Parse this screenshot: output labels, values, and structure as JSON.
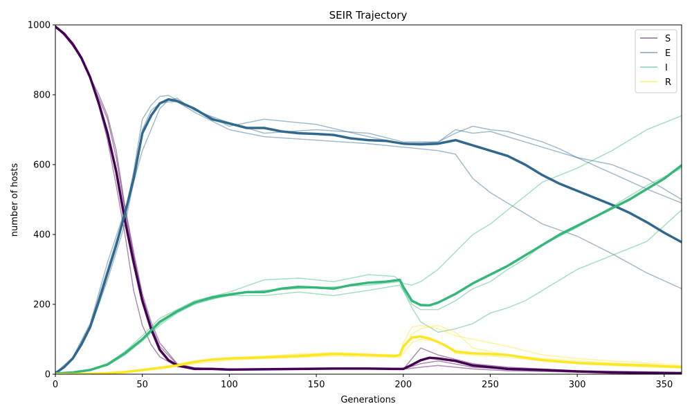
{
  "chart_data": {
    "type": "line",
    "title": "SEIR Trajectory",
    "xlabel": "Generations",
    "ylabel": "number of hosts",
    "xlim": [
      0,
      360
    ],
    "ylim": [
      0,
      1000
    ],
    "xticks": [
      0,
      50,
      100,
      150,
      200,
      250,
      300,
      350
    ],
    "yticks": [
      0,
      200,
      400,
      600,
      800,
      1000
    ],
    "grid": false,
    "legend_position": "top-right",
    "colors": {
      "S": "#440154",
      "E": "#31688e",
      "I": "#35b779",
      "R": "#fde725"
    },
    "series": [
      {
        "name": "S",
        "kind": "mean",
        "x": [
          0,
          5,
          10,
          15,
          20,
          25,
          30,
          35,
          40,
          45,
          50,
          55,
          60,
          65,
          70,
          80,
          90,
          100,
          120,
          140,
          160,
          180,
          195,
          200,
          205,
          210,
          215,
          220,
          230,
          240,
          250,
          260,
          280,
          300,
          320,
          340,
          360
        ],
        "y": [
          995,
          975,
          945,
          905,
          850,
          775,
          690,
          580,
          440,
          320,
          210,
          130,
          70,
          40,
          25,
          15,
          15,
          13,
          14,
          15,
          16,
          16,
          15,
          15,
          27,
          40,
          47,
          45,
          38,
          25,
          20,
          15,
          12,
          8,
          5,
          4,
          3
        ]
      },
      {
        "name": "S",
        "kind": "run",
        "x": [
          0,
          5,
          10,
          15,
          20,
          25,
          30,
          35,
          40,
          45,
          50,
          55,
          60,
          70,
          80,
          100,
          150,
          195,
          200,
          210,
          220,
          240,
          260,
          300,
          360
        ],
        "y": [
          995,
          975,
          945,
          905,
          850,
          800,
          740,
          640,
          480,
          350,
          230,
          150,
          90,
          30,
          18,
          15,
          15,
          15,
          14,
          75,
          55,
          30,
          20,
          10,
          5
        ]
      },
      {
        "name": "S",
        "kind": "run",
        "x": [
          0,
          5,
          10,
          15,
          20,
          25,
          30,
          35,
          40,
          45,
          50,
          55,
          60,
          70,
          80,
          100,
          150,
          200,
          210,
          220,
          240,
          260,
          300,
          360
        ],
        "y": [
          995,
          970,
          940,
          905,
          845,
          790,
          730,
          620,
          470,
          340,
          220,
          140,
          80,
          28,
          18,
          15,
          16,
          15,
          30,
          38,
          20,
          15,
          8,
          3
        ]
      },
      {
        "name": "S",
        "kind": "run",
        "x": [
          0,
          5,
          10,
          15,
          20,
          25,
          30,
          35,
          40,
          45,
          50,
          55,
          60,
          70,
          80,
          100,
          150,
          200,
          210,
          220,
          240,
          260,
          300,
          360
        ],
        "y": [
          995,
          975,
          950,
          910,
          855,
          770,
          670,
          540,
          400,
          240,
          140,
          85,
          50,
          22,
          14,
          14,
          15,
          14,
          20,
          25,
          15,
          10,
          6,
          2
        ]
      },
      {
        "name": "E",
        "kind": "mean",
        "x": [
          0,
          5,
          10,
          15,
          20,
          25,
          30,
          35,
          40,
          45,
          50,
          55,
          60,
          65,
          70,
          80,
          90,
          100,
          110,
          120,
          130,
          140,
          150,
          160,
          170,
          180,
          190,
          200,
          210,
          220,
          230,
          240,
          250,
          260,
          270,
          280,
          290,
          300,
          310,
          320,
          330,
          340,
          350,
          360
        ],
        "y": [
          3,
          20,
          45,
          85,
          135,
          210,
          290,
          370,
          460,
          560,
          690,
          740,
          775,
          787,
          782,
          760,
          730,
          718,
          705,
          705,
          695,
          690,
          688,
          685,
          675,
          670,
          668,
          660,
          658,
          660,
          670,
          655,
          640,
          625,
          600,
          570,
          545,
          525,
          505,
          485,
          462,
          435,
          405,
          378
        ]
      },
      {
        "name": "E",
        "kind": "run",
        "x": [
          0,
          10,
          20,
          30,
          40,
          45,
          50,
          55,
          60,
          65,
          70,
          80,
          100,
          120,
          150,
          180,
          200,
          220,
          230,
          240,
          250,
          260,
          270,
          280,
          290,
          300,
          320,
          340,
          360
        ],
        "y": [
          3,
          45,
          140,
          300,
          460,
          580,
          730,
          770,
          795,
          798,
          785,
          760,
          710,
          730,
          715,
          680,
          660,
          665,
          690,
          710,
          700,
          695,
          680,
          665,
          645,
          620,
          600,
          560,
          500
        ]
      },
      {
        "name": "E",
        "kind": "run",
        "x": [
          0,
          10,
          20,
          30,
          40,
          45,
          50,
          55,
          60,
          65,
          70,
          80,
          100,
          120,
          150,
          180,
          200,
          220,
          230,
          240,
          250,
          260,
          270,
          280,
          300,
          320,
          340,
          360
        ],
        "y": [
          3,
          42,
          130,
          270,
          430,
          550,
          700,
          755,
          775,
          780,
          780,
          750,
          700,
          680,
          670,
          660,
          650,
          640,
          630,
          560,
          520,
          490,
          460,
          430,
          395,
          345,
          290,
          245
        ]
      },
      {
        "name": "E",
        "kind": "run",
        "x": [
          0,
          10,
          20,
          30,
          40,
          45,
          50,
          55,
          60,
          65,
          70,
          80,
          100,
          120,
          150,
          180,
          200,
          220,
          230,
          240,
          250,
          260,
          280,
          300,
          320,
          340,
          360
        ],
        "y": [
          3,
          48,
          145,
          320,
          470,
          550,
          640,
          700,
          760,
          785,
          790,
          755,
          720,
          690,
          700,
          690,
          665,
          665,
          700,
          690,
          695,
          680,
          650,
          620,
          575,
          530,
          490
        ]
      },
      {
        "name": "I",
        "kind": "mean",
        "x": [
          0,
          10,
          20,
          30,
          40,
          50,
          60,
          70,
          80,
          90,
          100,
          110,
          120,
          130,
          140,
          150,
          160,
          170,
          180,
          190,
          198,
          200,
          205,
          210,
          215,
          220,
          230,
          240,
          250,
          260,
          270,
          280,
          290,
          300,
          310,
          320,
          330,
          340,
          350,
          360
        ],
        "y": [
          2,
          5,
          12,
          28,
          60,
          100,
          150,
          180,
          205,
          220,
          228,
          235,
          235,
          245,
          250,
          248,
          245,
          255,
          262,
          265,
          270,
          250,
          210,
          198,
          197,
          205,
          230,
          260,
          285,
          310,
          340,
          370,
          400,
          425,
          450,
          475,
          500,
          530,
          560,
          598
        ]
      },
      {
        "name": "I",
        "kind": "run",
        "x": [
          0,
          10,
          20,
          30,
          40,
          50,
          60,
          70,
          80,
          100,
          120,
          140,
          160,
          180,
          195,
          200,
          205,
          210,
          220,
          230,
          240,
          250,
          260,
          270,
          280,
          300,
          320,
          340,
          360
        ],
        "y": [
          2,
          5,
          12,
          30,
          65,
          110,
          160,
          185,
          210,
          235,
          270,
          275,
          265,
          285,
          280,
          260,
          255,
          265,
          300,
          350,
          400,
          430,
          470,
          510,
          550,
          590,
          640,
          700,
          740
        ]
      },
      {
        "name": "I",
        "kind": "run",
        "x": [
          0,
          10,
          20,
          30,
          40,
          50,
          60,
          70,
          80,
          100,
          120,
          140,
          160,
          180,
          198,
          200,
          205,
          210,
          220,
          230,
          240,
          250,
          260,
          270,
          280,
          300,
          320,
          340,
          360
        ],
        "y": [
          2,
          5,
          12,
          25,
          55,
          95,
          140,
          175,
          200,
          230,
          240,
          245,
          250,
          255,
          265,
          240,
          190,
          150,
          120,
          130,
          145,
          175,
          190,
          210,
          240,
          300,
          340,
          380,
          470
        ]
      },
      {
        "name": "I",
        "kind": "run",
        "x": [
          0,
          10,
          20,
          30,
          40,
          50,
          60,
          70,
          80,
          100,
          120,
          140,
          160,
          180,
          198,
          200,
          205,
          210,
          220,
          230,
          240,
          250,
          260,
          270,
          280,
          300,
          320,
          340,
          360
        ],
        "y": [
          2,
          5,
          11,
          28,
          60,
          100,
          145,
          178,
          205,
          225,
          225,
          235,
          225,
          240,
          255,
          240,
          200,
          185,
          185,
          210,
          245,
          265,
          300,
          330,
          370,
          420,
          480,
          540,
          590
        ]
      },
      {
        "name": "R",
        "kind": "mean",
        "x": [
          0,
          10,
          20,
          30,
          40,
          50,
          60,
          70,
          80,
          90,
          100,
          120,
          140,
          160,
          180,
          195,
          198,
          200,
          205,
          210,
          215,
          220,
          225,
          230,
          240,
          250,
          260,
          280,
          300,
          320,
          340,
          360
        ],
        "y": [
          0,
          0,
          1,
          3,
          6,
          12,
          18,
          25,
          35,
          42,
          45,
          48,
          52,
          58,
          55,
          52,
          55,
          80,
          105,
          108,
          102,
          92,
          80,
          65,
          60,
          58,
          55,
          40,
          32,
          28,
          25,
          20
        ]
      },
      {
        "name": "R",
        "kind": "run",
        "x": [
          0,
          20,
          40,
          60,
          80,
          100,
          120,
          140,
          160,
          180,
          198,
          200,
          205,
          210,
          220,
          230,
          240,
          260,
          280,
          300,
          320,
          340,
          360
        ],
        "y": [
          0,
          1,
          8,
          20,
          38,
          47,
          52,
          58,
          62,
          58,
          55,
          90,
          135,
          140,
          130,
          110,
          100,
          80,
          55,
          45,
          38,
          32,
          25
        ]
      },
      {
        "name": "R",
        "kind": "run",
        "x": [
          0,
          20,
          40,
          60,
          80,
          100,
          120,
          140,
          160,
          180,
          198,
          200,
          205,
          210,
          220,
          230,
          240,
          260,
          280,
          300,
          320,
          340,
          360
        ],
        "y": [
          0,
          1,
          5,
          15,
          30,
          40,
          45,
          48,
          52,
          50,
          48,
          60,
          90,
          100,
          95,
          60,
          55,
          48,
          38,
          30,
          25,
          20,
          18
        ]
      },
      {
        "name": "R",
        "kind": "run",
        "x": [
          0,
          20,
          40,
          60,
          80,
          100,
          120,
          140,
          160,
          180,
          198,
          200,
          205,
          210,
          220,
          230,
          240,
          260,
          280,
          300,
          320,
          340,
          360
        ],
        "y": [
          0,
          1,
          6,
          18,
          35,
          45,
          50,
          55,
          60,
          56,
          52,
          70,
          115,
          130,
          140,
          120,
          75,
          55,
          45,
          38,
          32,
          28,
          22
        ]
      }
    ]
  }
}
